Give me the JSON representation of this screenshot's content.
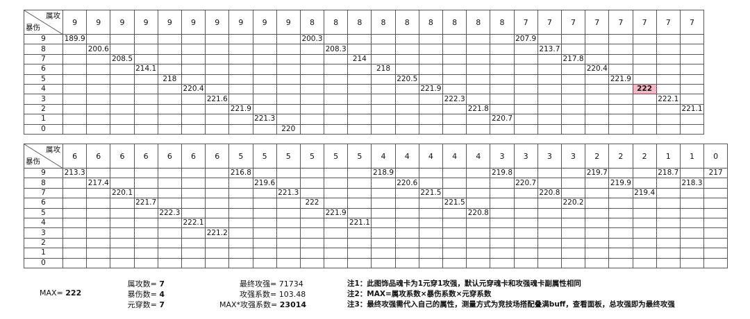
{
  "corner": {
    "top_label": "属攻",
    "bottom_label": "暴伤"
  },
  "highlight_color": "#f4b6c2",
  "tables": [
    {
      "col_headers": [
        "9",
        "9",
        "9",
        "9",
        "9",
        "9",
        "9",
        "9",
        "9",
        "9",
        "8",
        "8",
        "8",
        "8",
        "8",
        "8",
        "8",
        "8",
        "8",
        "7",
        "7",
        "7",
        "7",
        "7",
        "7",
        "7",
        "7"
      ],
      "rows": [
        {
          "label": "9",
          "values": {
            "0": "189.9",
            "10": "200.3",
            "19": "207.9"
          }
        },
        {
          "label": "8",
          "values": {
            "1": "200.6",
            "11": "208.3",
            "20": "213.7"
          }
        },
        {
          "label": "7",
          "values": {
            "2": "208.5",
            "12": "214",
            "21": "217.8"
          }
        },
        {
          "label": "6",
          "values": {
            "3": "214.1",
            "13": "218",
            "22": "220.4"
          }
        },
        {
          "label": "5",
          "values": {
            "4": "218",
            "14": "220.5",
            "23": "221.9"
          }
        },
        {
          "label": "4",
          "values": {
            "5": "220.4",
            "15": "221.9",
            "24": "222"
          }
        },
        {
          "label": "3",
          "values": {
            "6": "221.6",
            "16": "222.3",
            "25": "222.1"
          }
        },
        {
          "label": "2",
          "values": {
            "7": "221.9",
            "17": "221.8",
            "26": "221.1"
          }
        },
        {
          "label": "1",
          "values": {
            "8": "221.3",
            "18": "220.7"
          }
        },
        {
          "label": "0",
          "values": {
            "9": "220"
          }
        }
      ],
      "highlight": {
        "row": 5,
        "col": 24
      }
    },
    {
      "col_headers": [
        "6",
        "6",
        "6",
        "6",
        "6",
        "6",
        "6",
        "5",
        "5",
        "5",
        "5",
        "5",
        "5",
        "4",
        "4",
        "4",
        "4",
        "4",
        "3",
        "3",
        "3",
        "3",
        "2",
        "2",
        "2",
        "1",
        "1",
        "0"
      ],
      "rows": [
        {
          "label": "9",
          "values": {
            "0": "213.3",
            "7": "216.8",
            "13": "218.9",
            "18": "219.8",
            "22": "219.7",
            "25": "218.7",
            "27": "217"
          }
        },
        {
          "label": "8",
          "values": {
            "1": "217.4",
            "8": "219.6",
            "14": "220.6",
            "19": "220.7",
            "23": "219.9",
            "26": "218.3"
          }
        },
        {
          "label": "7",
          "values": {
            "2": "220.1",
            "9": "221.3",
            "15": "221.5",
            "20": "220.8",
            "24": "219.4"
          }
        },
        {
          "label": "6",
          "values": {
            "3": "221.7",
            "10": "222",
            "16": "221.5",
            "21": "220.2"
          }
        },
        {
          "label": "5",
          "values": {
            "4": "222.3",
            "11": "221.9",
            "17": "220.8"
          }
        },
        {
          "label": "4",
          "values": {
            "5": "222.1",
            "12": "221.1"
          }
        },
        {
          "label": "3",
          "values": {
            "6": "221.2"
          }
        },
        {
          "label": "2",
          "values": {}
        },
        {
          "label": "1",
          "values": {}
        },
        {
          "label": "0",
          "values": {}
        }
      ]
    }
  ],
  "summary": {
    "max_label": "MAX=",
    "max_value": "222",
    "elem_atk_label": "属攻数=",
    "elem_atk_value": "7",
    "crit_dmg_label": "暴伤数=",
    "crit_dmg_value": "4",
    "elem_pen_label": "元穿数=",
    "elem_pen_value": "7",
    "final_atk_label": "最终攻强=",
    "final_atk_value": "71734",
    "atk_coef_label": "攻强系数=",
    "atk_coef_value": "103.48",
    "max_x_coef_label": "MAX*攻强系数=",
    "max_x_coef_value": "23014"
  },
  "notes": [
    "注1：此图饰品魂卡为1元穿1攻强，默认元穿魂卡和攻强魂卡副属性相同",
    "注2：MAX=属攻系数×暴伤系数×元穿系数",
    "注3：最终攻强需代入自己的属性，测量方式为竞技场搭配叠满buff，查看面板，总攻强即为最终攻强"
  ]
}
